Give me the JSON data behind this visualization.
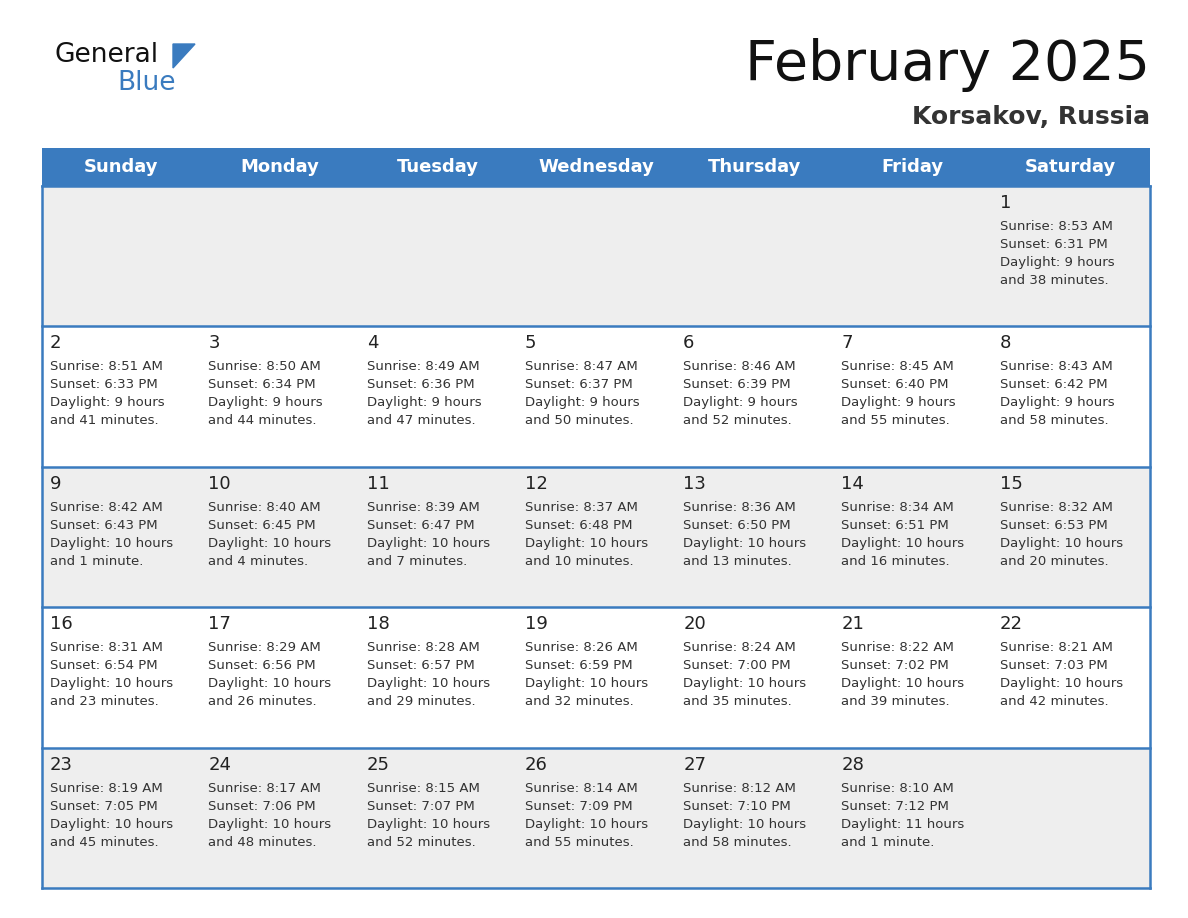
{
  "title": "February 2025",
  "subtitle": "Korsakov, Russia",
  "header_color": "#3a7bbf",
  "header_text_color": "#ffffff",
  "day_names": [
    "Sunday",
    "Monday",
    "Tuesday",
    "Wednesday",
    "Thursday",
    "Friday",
    "Saturday"
  ],
  "background_color": "#ffffff",
  "row_bg_odd": "#eeeeee",
  "row_bg_even": "#ffffff",
  "border_color": "#3a7bbf",
  "number_color": "#222222",
  "text_color": "#333333",
  "days": [
    {
      "day": 1,
      "col": 6,
      "row": 0,
      "sunrise": "8:53 AM",
      "sunset": "6:31 PM",
      "daylight": "9 hours and 38 minutes."
    },
    {
      "day": 2,
      "col": 0,
      "row": 1,
      "sunrise": "8:51 AM",
      "sunset": "6:33 PM",
      "daylight": "9 hours and 41 minutes."
    },
    {
      "day": 3,
      "col": 1,
      "row": 1,
      "sunrise": "8:50 AM",
      "sunset": "6:34 PM",
      "daylight": "9 hours and 44 minutes."
    },
    {
      "day": 4,
      "col": 2,
      "row": 1,
      "sunrise": "8:49 AM",
      "sunset": "6:36 PM",
      "daylight": "9 hours and 47 minutes."
    },
    {
      "day": 5,
      "col": 3,
      "row": 1,
      "sunrise": "8:47 AM",
      "sunset": "6:37 PM",
      "daylight": "9 hours and 50 minutes."
    },
    {
      "day": 6,
      "col": 4,
      "row": 1,
      "sunrise": "8:46 AM",
      "sunset": "6:39 PM",
      "daylight": "9 hours and 52 minutes."
    },
    {
      "day": 7,
      "col": 5,
      "row": 1,
      "sunrise": "8:45 AM",
      "sunset": "6:40 PM",
      "daylight": "9 hours and 55 minutes."
    },
    {
      "day": 8,
      "col": 6,
      "row": 1,
      "sunrise": "8:43 AM",
      "sunset": "6:42 PM",
      "daylight": "9 hours and 58 minutes."
    },
    {
      "day": 9,
      "col": 0,
      "row": 2,
      "sunrise": "8:42 AM",
      "sunset": "6:43 PM",
      "daylight": "10 hours and 1 minute."
    },
    {
      "day": 10,
      "col": 1,
      "row": 2,
      "sunrise": "8:40 AM",
      "sunset": "6:45 PM",
      "daylight": "10 hours and 4 minutes."
    },
    {
      "day": 11,
      "col": 2,
      "row": 2,
      "sunrise": "8:39 AM",
      "sunset": "6:47 PM",
      "daylight": "10 hours and 7 minutes."
    },
    {
      "day": 12,
      "col": 3,
      "row": 2,
      "sunrise": "8:37 AM",
      "sunset": "6:48 PM",
      "daylight": "10 hours and 10 minutes."
    },
    {
      "day": 13,
      "col": 4,
      "row": 2,
      "sunrise": "8:36 AM",
      "sunset": "6:50 PM",
      "daylight": "10 hours and 13 minutes."
    },
    {
      "day": 14,
      "col": 5,
      "row": 2,
      "sunrise": "8:34 AM",
      "sunset": "6:51 PM",
      "daylight": "10 hours and 16 minutes."
    },
    {
      "day": 15,
      "col": 6,
      "row": 2,
      "sunrise": "8:32 AM",
      "sunset": "6:53 PM",
      "daylight": "10 hours and 20 minutes."
    },
    {
      "day": 16,
      "col": 0,
      "row": 3,
      "sunrise": "8:31 AM",
      "sunset": "6:54 PM",
      "daylight": "10 hours and 23 minutes."
    },
    {
      "day": 17,
      "col": 1,
      "row": 3,
      "sunrise": "8:29 AM",
      "sunset": "6:56 PM",
      "daylight": "10 hours and 26 minutes."
    },
    {
      "day": 18,
      "col": 2,
      "row": 3,
      "sunrise": "8:28 AM",
      "sunset": "6:57 PM",
      "daylight": "10 hours and 29 minutes."
    },
    {
      "day": 19,
      "col": 3,
      "row": 3,
      "sunrise": "8:26 AM",
      "sunset": "6:59 PM",
      "daylight": "10 hours and 32 minutes."
    },
    {
      "day": 20,
      "col": 4,
      "row": 3,
      "sunrise": "8:24 AM",
      "sunset": "7:00 PM",
      "daylight": "10 hours and 35 minutes."
    },
    {
      "day": 21,
      "col": 5,
      "row": 3,
      "sunrise": "8:22 AM",
      "sunset": "7:02 PM",
      "daylight": "10 hours and 39 minutes."
    },
    {
      "day": 22,
      "col": 6,
      "row": 3,
      "sunrise": "8:21 AM",
      "sunset": "7:03 PM",
      "daylight": "10 hours and 42 minutes."
    },
    {
      "day": 23,
      "col": 0,
      "row": 4,
      "sunrise": "8:19 AM",
      "sunset": "7:05 PM",
      "daylight": "10 hours and 45 minutes."
    },
    {
      "day": 24,
      "col": 1,
      "row": 4,
      "sunrise": "8:17 AM",
      "sunset": "7:06 PM",
      "daylight": "10 hours and 48 minutes."
    },
    {
      "day": 25,
      "col": 2,
      "row": 4,
      "sunrise": "8:15 AM",
      "sunset": "7:07 PM",
      "daylight": "10 hours and 52 minutes."
    },
    {
      "day": 26,
      "col": 3,
      "row": 4,
      "sunrise": "8:14 AM",
      "sunset": "7:09 PM",
      "daylight": "10 hours and 55 minutes."
    },
    {
      "day": 27,
      "col": 4,
      "row": 4,
      "sunrise": "8:12 AM",
      "sunset": "7:10 PM",
      "daylight": "10 hours and 58 minutes."
    },
    {
      "day": 28,
      "col": 5,
      "row": 4,
      "sunrise": "8:10 AM",
      "sunset": "7:12 PM",
      "daylight": "11 hours and 1 minute."
    }
  ]
}
